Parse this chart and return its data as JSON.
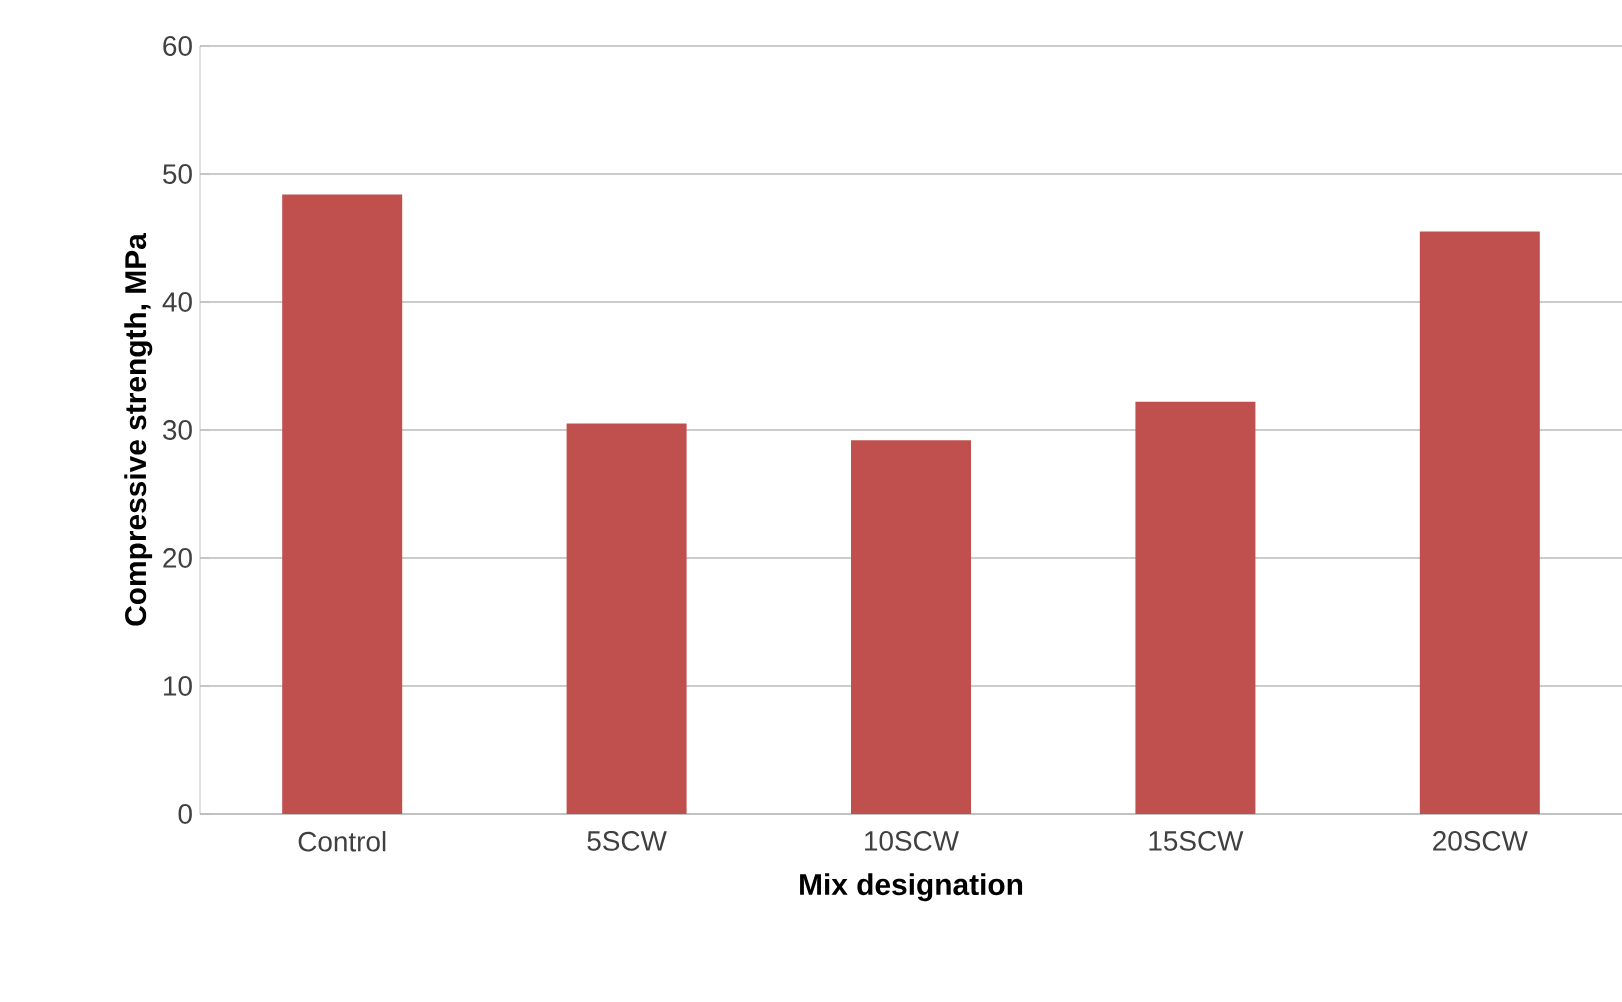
{
  "chart_data": {
    "type": "bar",
    "xlabel": "Mix designation",
    "ylabel": "Compressive strength, MPa",
    "categories": [
      "Control",
      "5SCW",
      "10SCW",
      "15SCW",
      "20SCW"
    ],
    "values": [
      48.4,
      30.5,
      29.2,
      32.2,
      45.5
    ],
    "color": "#c0504d",
    "ylim": [
      0,
      60
    ],
    "yticks": [
      0,
      10,
      20,
      30,
      40,
      50,
      60
    ],
    "grid": "y"
  }
}
